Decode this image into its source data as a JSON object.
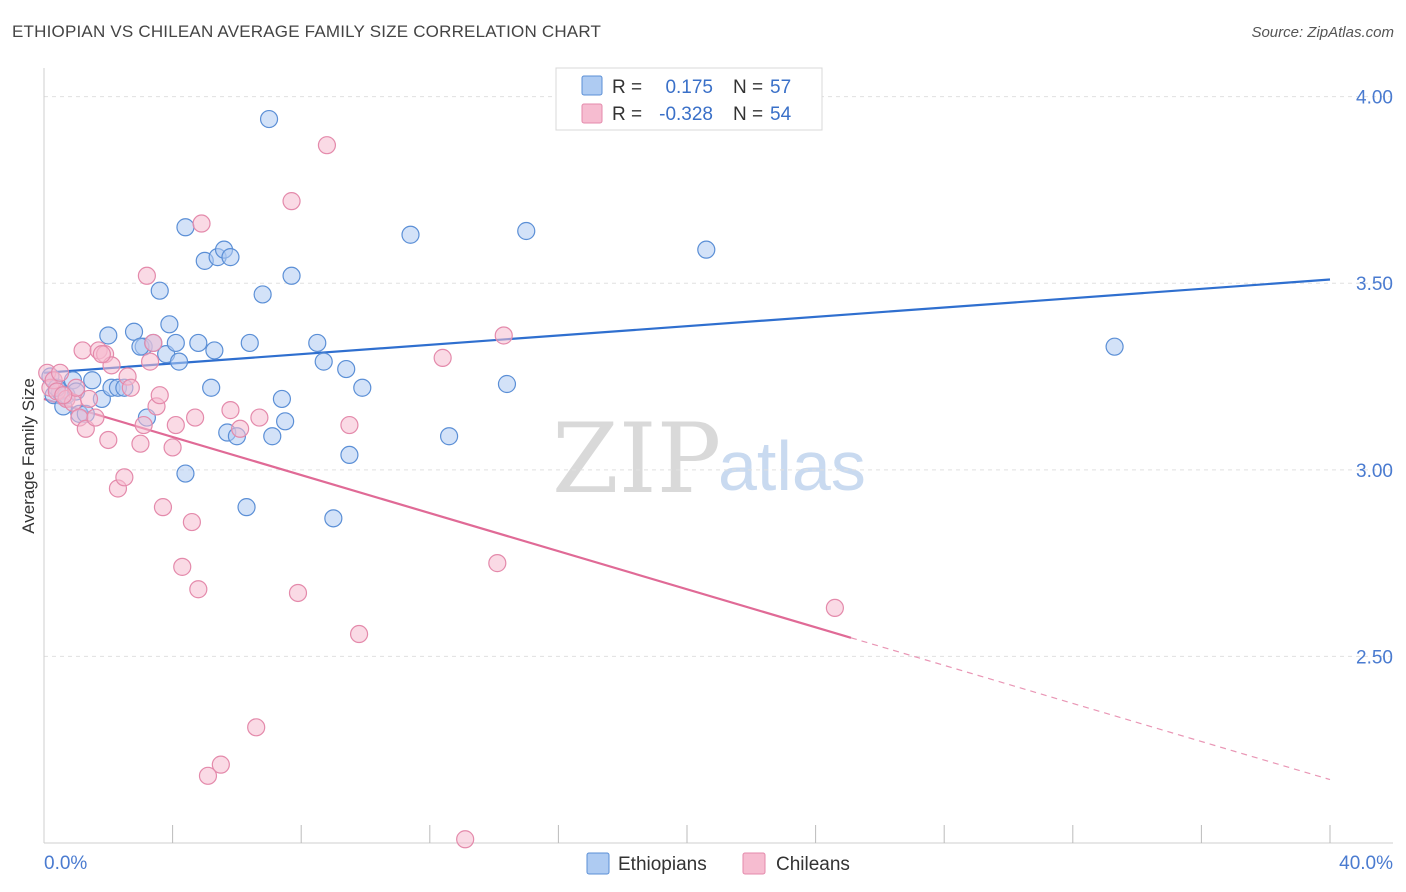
{
  "header": {
    "title": "ETHIOPIAN VS CHILEAN AVERAGE FAMILY SIZE CORRELATION CHART",
    "source": "Source: ZipAtlas.com"
  },
  "watermark": {
    "zip": "ZIP",
    "atlas": "atlas"
  },
  "colors": {
    "ethiopians_fill": "#aecbf2",
    "ethiopians_stroke": "#5b8fd6",
    "ethiopians_line": "#2f6fcf",
    "chileans_fill": "#f6bcd0",
    "chileans_stroke": "#e48aab",
    "chileans_line": "#e06a96",
    "grid": "#e0e0e0",
    "axis_text": "#4a7bd0"
  },
  "legend": {
    "rows": [
      {
        "r_label": "R =",
        "r_value": "0.175",
        "n_label": "N =",
        "n_value": "57"
      },
      {
        "r_label": "R =",
        "r_value": "-0.328",
        "n_label": "N =",
        "n_value": "54"
      }
    ]
  },
  "chart_data": {
    "type": "scatter",
    "title": "ETHIOPIAN VS CHILEAN AVERAGE FAMILY SIZE CORRELATION CHART",
    "xlabel": "",
    "ylabel": "Average Family Size",
    "xlim": [
      0,
      40
    ],
    "ylim": [
      2.0,
      4.05
    ],
    "x_tick_labels": [
      "0.0%",
      "40.0%"
    ],
    "y_ticks": [
      2.5,
      3.0,
      3.5,
      4.0
    ],
    "y_tick_labels": [
      "2.50",
      "3.00",
      "3.50",
      "4.00"
    ],
    "grid": true,
    "legend_position": "top-center",
    "series": [
      {
        "name": "Ethiopians",
        "trend": {
          "x": [
            0,
            40
          ],
          "y": [
            3.26,
            3.51
          ],
          "solid_until": 40
        },
        "points": [
          [
            0.2,
            3.25
          ],
          [
            0.3,
            3.2
          ],
          [
            0.5,
            3.21
          ],
          [
            0.6,
            3.17
          ],
          [
            0.7,
            3.2
          ],
          [
            0.9,
            3.24
          ],
          [
            1.1,
            3.15
          ],
          [
            1.3,
            3.15
          ],
          [
            1.5,
            3.24
          ],
          [
            1.8,
            3.19
          ],
          [
            2.1,
            3.22
          ],
          [
            2.3,
            3.22
          ],
          [
            2.0,
            3.36
          ],
          [
            2.8,
            3.37
          ],
          [
            3.1,
            3.33
          ],
          [
            3.0,
            3.33
          ],
          [
            3.4,
            3.34
          ],
          [
            3.6,
            3.48
          ],
          [
            3.8,
            3.31
          ],
          [
            3.9,
            3.39
          ],
          [
            4.1,
            3.34
          ],
          [
            4.2,
            3.29
          ],
          [
            4.4,
            2.99
          ],
          [
            4.8,
            3.34
          ],
          [
            5.0,
            3.56
          ],
          [
            4.4,
            3.65
          ],
          [
            5.4,
            3.57
          ],
          [
            5.6,
            3.59
          ],
          [
            5.8,
            3.57
          ],
          [
            5.2,
            3.22
          ],
          [
            5.3,
            3.32
          ],
          [
            5.7,
            3.1
          ],
          [
            6.0,
            3.09
          ],
          [
            6.3,
            2.9
          ],
          [
            6.4,
            3.34
          ],
          [
            6.8,
            3.47
          ],
          [
            7.0,
            3.94
          ],
          [
            7.1,
            3.09
          ],
          [
            7.4,
            3.19
          ],
          [
            7.5,
            3.13
          ],
          [
            7.7,
            3.52
          ],
          [
            8.5,
            3.34
          ],
          [
            8.7,
            3.29
          ],
          [
            9.0,
            2.87
          ],
          [
            9.4,
            3.27
          ],
          [
            9.5,
            3.04
          ],
          [
            9.9,
            3.22
          ],
          [
            11.4,
            3.63
          ],
          [
            12.6,
            3.09
          ],
          [
            14.4,
            3.23
          ],
          [
            15.0,
            3.64
          ],
          [
            20.6,
            3.59
          ],
          [
            33.3,
            3.33
          ],
          [
            3.2,
            3.14
          ],
          [
            2.5,
            3.22
          ],
          [
            1.0,
            3.21
          ],
          [
            0.4,
            3.22
          ]
        ]
      },
      {
        "name": "Chileans",
        "trend": {
          "x": [
            0,
            40
          ],
          "y": [
            3.19,
            2.17
          ],
          "solid_until": 25.1
        },
        "points": [
          [
            0.1,
            3.26
          ],
          [
            0.2,
            3.22
          ],
          [
            0.3,
            3.24
          ],
          [
            0.4,
            3.21
          ],
          [
            0.5,
            3.26
          ],
          [
            0.7,
            3.19
          ],
          [
            0.9,
            3.18
          ],
          [
            1.0,
            3.22
          ],
          [
            1.1,
            3.14
          ],
          [
            1.2,
            3.32
          ],
          [
            1.3,
            3.11
          ],
          [
            1.4,
            3.19
          ],
          [
            1.6,
            3.14
          ],
          [
            1.7,
            3.32
          ],
          [
            1.9,
            3.31
          ],
          [
            2.0,
            3.08
          ],
          [
            2.1,
            3.28
          ],
          [
            2.3,
            2.95
          ],
          [
            2.5,
            2.98
          ],
          [
            2.6,
            3.25
          ],
          [
            2.7,
            3.22
          ],
          [
            3.0,
            3.07
          ],
          [
            3.1,
            3.12
          ],
          [
            3.2,
            3.52
          ],
          [
            3.3,
            3.29
          ],
          [
            3.5,
            3.17
          ],
          [
            3.6,
            3.2
          ],
          [
            3.7,
            2.9
          ],
          [
            4.0,
            3.06
          ],
          [
            4.1,
            3.12
          ],
          [
            4.3,
            2.74
          ],
          [
            4.6,
            2.86
          ],
          [
            4.7,
            3.14
          ],
          [
            4.8,
            2.68
          ],
          [
            4.9,
            3.66
          ],
          [
            5.1,
            2.18
          ],
          [
            5.5,
            2.21
          ],
          [
            5.8,
            3.16
          ],
          [
            6.1,
            3.11
          ],
          [
            6.6,
            2.31
          ],
          [
            6.7,
            3.14
          ],
          [
            7.7,
            3.72
          ],
          [
            7.9,
            2.67
          ],
          [
            8.8,
            3.87
          ],
          [
            9.5,
            3.12
          ],
          [
            9.8,
            2.56
          ],
          [
            12.4,
            3.3
          ],
          [
            13.1,
            2.01
          ],
          [
            14.1,
            2.75
          ],
          [
            14.3,
            3.36
          ],
          [
            24.6,
            2.63
          ],
          [
            1.8,
            3.31
          ],
          [
            0.6,
            3.2
          ],
          [
            3.4,
            3.34
          ]
        ]
      }
    ]
  }
}
